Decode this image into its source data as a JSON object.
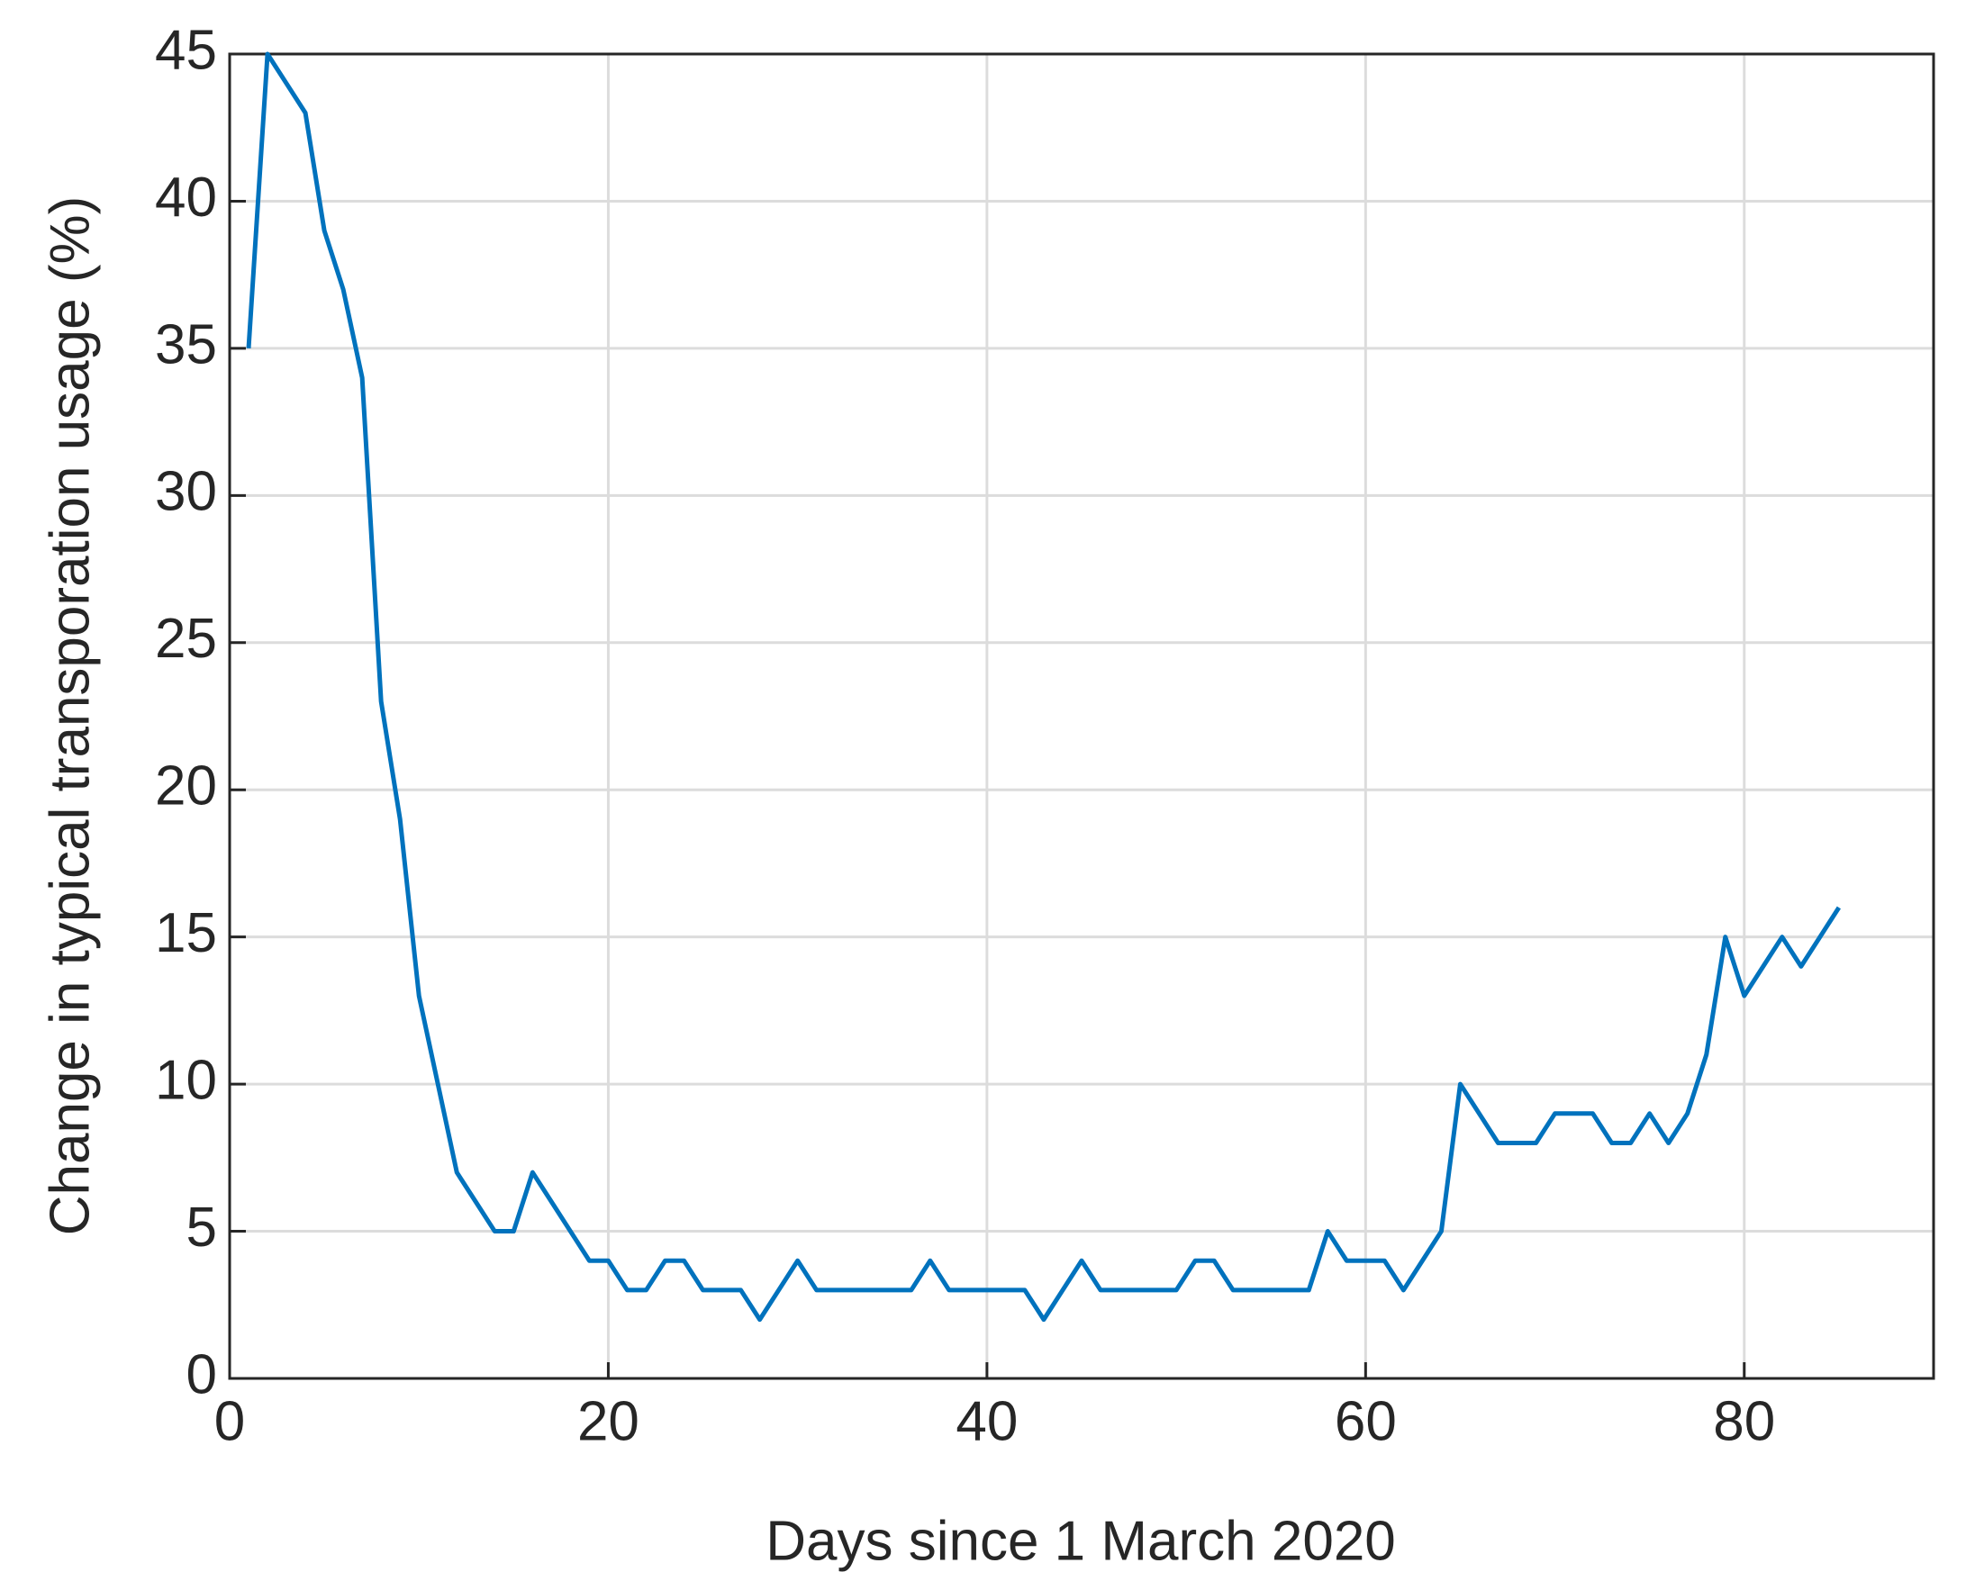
{
  "chart_data": {
    "type": "line",
    "x_label": "Days since 1 March 2020",
    "y_label": "Change in typical transporation usage (%)",
    "x": [
      1,
      2,
      3,
      4,
      5,
      6,
      7,
      8,
      9,
      10,
      11,
      12,
      13,
      14,
      15,
      16,
      17,
      18,
      19,
      20,
      21,
      22,
      23,
      24,
      25,
      26,
      27,
      28,
      29,
      30,
      31,
      32,
      33,
      34,
      35,
      36,
      37,
      38,
      39,
      40,
      41,
      42,
      43,
      44,
      45,
      46,
      47,
      48,
      49,
      50,
      51,
      52,
      53,
      54,
      55,
      56,
      57,
      58,
      59,
      60,
      61,
      62,
      63,
      64,
      65,
      66,
      67,
      68,
      69,
      70,
      71,
      72,
      73,
      74,
      75,
      76,
      77,
      78,
      79,
      80,
      81,
      82,
      83,
      84,
      85
    ],
    "series": [
      {
        "color": "#0072bd",
        "values": [
          35,
          45,
          44,
          43,
          39,
          37,
          34,
          23,
          19,
          13,
          10,
          7,
          6,
          5,
          5,
          7,
          6,
          5,
          4,
          4,
          3,
          3,
          4,
          4,
          3,
          3,
          3,
          2,
          3,
          4,
          3,
          3,
          3,
          3,
          3,
          3,
          4,
          3,
          3,
          3,
          3,
          3,
          2,
          3,
          4,
          3,
          3,
          3,
          3,
          3,
          4,
          4,
          3,
          3,
          3,
          3,
          3,
          5,
          4,
          4,
          4,
          3,
          4,
          5,
          10,
          9,
          8,
          8,
          8,
          9,
          9,
          9,
          8,
          8,
          9,
          8,
          9,
          11,
          15,
          13,
          14,
          15,
          14,
          15,
          16
        ]
      }
    ],
    "xlim": [
      0,
      90
    ],
    "xticks": [
      0,
      20,
      40,
      60,
      80
    ],
    "ylim": [
      0,
      45
    ],
    "yticks": [
      0,
      5,
      10,
      15,
      20,
      25,
      30,
      35,
      40,
      45
    ],
    "grid": true
  }
}
